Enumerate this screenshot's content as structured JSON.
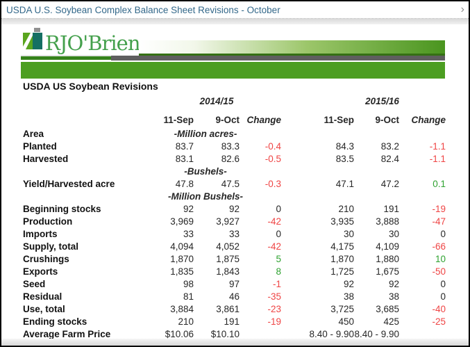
{
  "window": {
    "title": "USDA U.S. Soybean Complex Balance Sheet Revisions - October",
    "chevron": "›"
  },
  "logo": {
    "brand": "RJO'Brien",
    "icon": "rjobrien-logo-icon"
  },
  "colors": {
    "title_text": "#33688a",
    "brand_green": "#44a04c",
    "bar_green": "#4c9e21",
    "bar_gray": "#5f5f5f",
    "icon_green": "#5aa51e",
    "icon_teal": "#156f63",
    "negative_red": "#ef4444",
    "positive_green": "#2ea230"
  },
  "table": {
    "title": "USDA US Soybean Revisions",
    "year_groups": [
      "2014/15",
      "2015/16"
    ],
    "col_headers": [
      "11-Sep",
      "9-Oct",
      "Change",
      "11-Sep",
      "9-Oct",
      "Change"
    ],
    "rows": [
      {
        "label": "Area",
        "unit": "-Million acres-"
      },
      {
        "label": "Planted",
        "indent": true,
        "cells": [
          "83.7",
          "83.3",
          "-0.4",
          "84.3",
          "83.2",
          "-1.1"
        ],
        "colors": [
          null,
          null,
          "red",
          null,
          null,
          "red"
        ]
      },
      {
        "label": "Harvested",
        "indent": true,
        "cells": [
          "83.1",
          "82.6",
          "-0.5",
          "83.5",
          "82.4",
          "-1.1"
        ],
        "colors": [
          null,
          null,
          "red",
          null,
          null,
          "red"
        ]
      },
      {
        "label": "",
        "unit": "-Bushels-"
      },
      {
        "label": "Yield/Harvested acre",
        "cells": [
          "47.8",
          "47.5",
          "-0.3",
          "47.1",
          "47.2",
          "0.1"
        ],
        "colors": [
          null,
          null,
          "red",
          null,
          null,
          "green"
        ]
      },
      {
        "label": "",
        "unit": "-Million Bushels-"
      },
      {
        "label": "Beginning stocks",
        "cells": [
          "92",
          "92",
          "0",
          "210",
          "191",
          "-19"
        ],
        "colors": [
          null,
          null,
          null,
          null,
          null,
          "red"
        ]
      },
      {
        "label": "Production",
        "cells": [
          "3,969",
          "3,927",
          "-42",
          "3,935",
          "3,888",
          "-47"
        ],
        "colors": [
          null,
          null,
          "red",
          null,
          null,
          "red"
        ]
      },
      {
        "label": "Imports",
        "cells": [
          "33",
          "33",
          "0",
          "30",
          "30",
          "0"
        ],
        "colors": [
          null,
          null,
          null,
          null,
          null,
          null
        ]
      },
      {
        "label": "Supply, total",
        "indent": true,
        "cells": [
          "4,094",
          "4,052",
          "-42",
          "4,175",
          "4,109",
          "-66"
        ],
        "colors": [
          null,
          null,
          "red",
          null,
          null,
          "red"
        ]
      },
      {
        "label": "Crushings",
        "cells": [
          "1,870",
          "1,875",
          "5",
          "1,870",
          "1,880",
          "10"
        ],
        "colors": [
          null,
          null,
          "green",
          null,
          null,
          "green"
        ]
      },
      {
        "label": "Exports",
        "cells": [
          "1,835",
          "1,843",
          "8",
          "1,725",
          "1,675",
          "-50"
        ],
        "colors": [
          null,
          null,
          "green",
          null,
          null,
          "red"
        ]
      },
      {
        "label": "Seed",
        "cells": [
          "98",
          "97",
          "-1",
          "92",
          "92",
          "0"
        ],
        "colors": [
          null,
          null,
          "red",
          null,
          null,
          null
        ]
      },
      {
        "label": "Residual",
        "indent": true,
        "cells": [
          "81",
          "46",
          "-35",
          "38",
          "38",
          "0"
        ],
        "colors": [
          null,
          null,
          "red",
          null,
          null,
          null
        ]
      },
      {
        "label": "Use, total",
        "cells": [
          "3,884",
          "3,861",
          "-23",
          "3,725",
          "3,685",
          "-40"
        ],
        "colors": [
          null,
          null,
          "red",
          null,
          null,
          "red"
        ]
      },
      {
        "label": "Ending stocks",
        "indent": true,
        "cells": [
          "210",
          "191",
          "-19",
          "450",
          "425",
          "-25"
        ],
        "colors": [
          null,
          null,
          "red",
          null,
          null,
          "red"
        ]
      },
      {
        "label": "Average Farm Price",
        "cells": [
          "$10.06",
          "$10.10",
          "",
          "8.40 - 9.90",
          "8.40 - 9.90",
          ""
        ],
        "colors": [
          null,
          null,
          null,
          null,
          null,
          null
        ]
      }
    ]
  }
}
